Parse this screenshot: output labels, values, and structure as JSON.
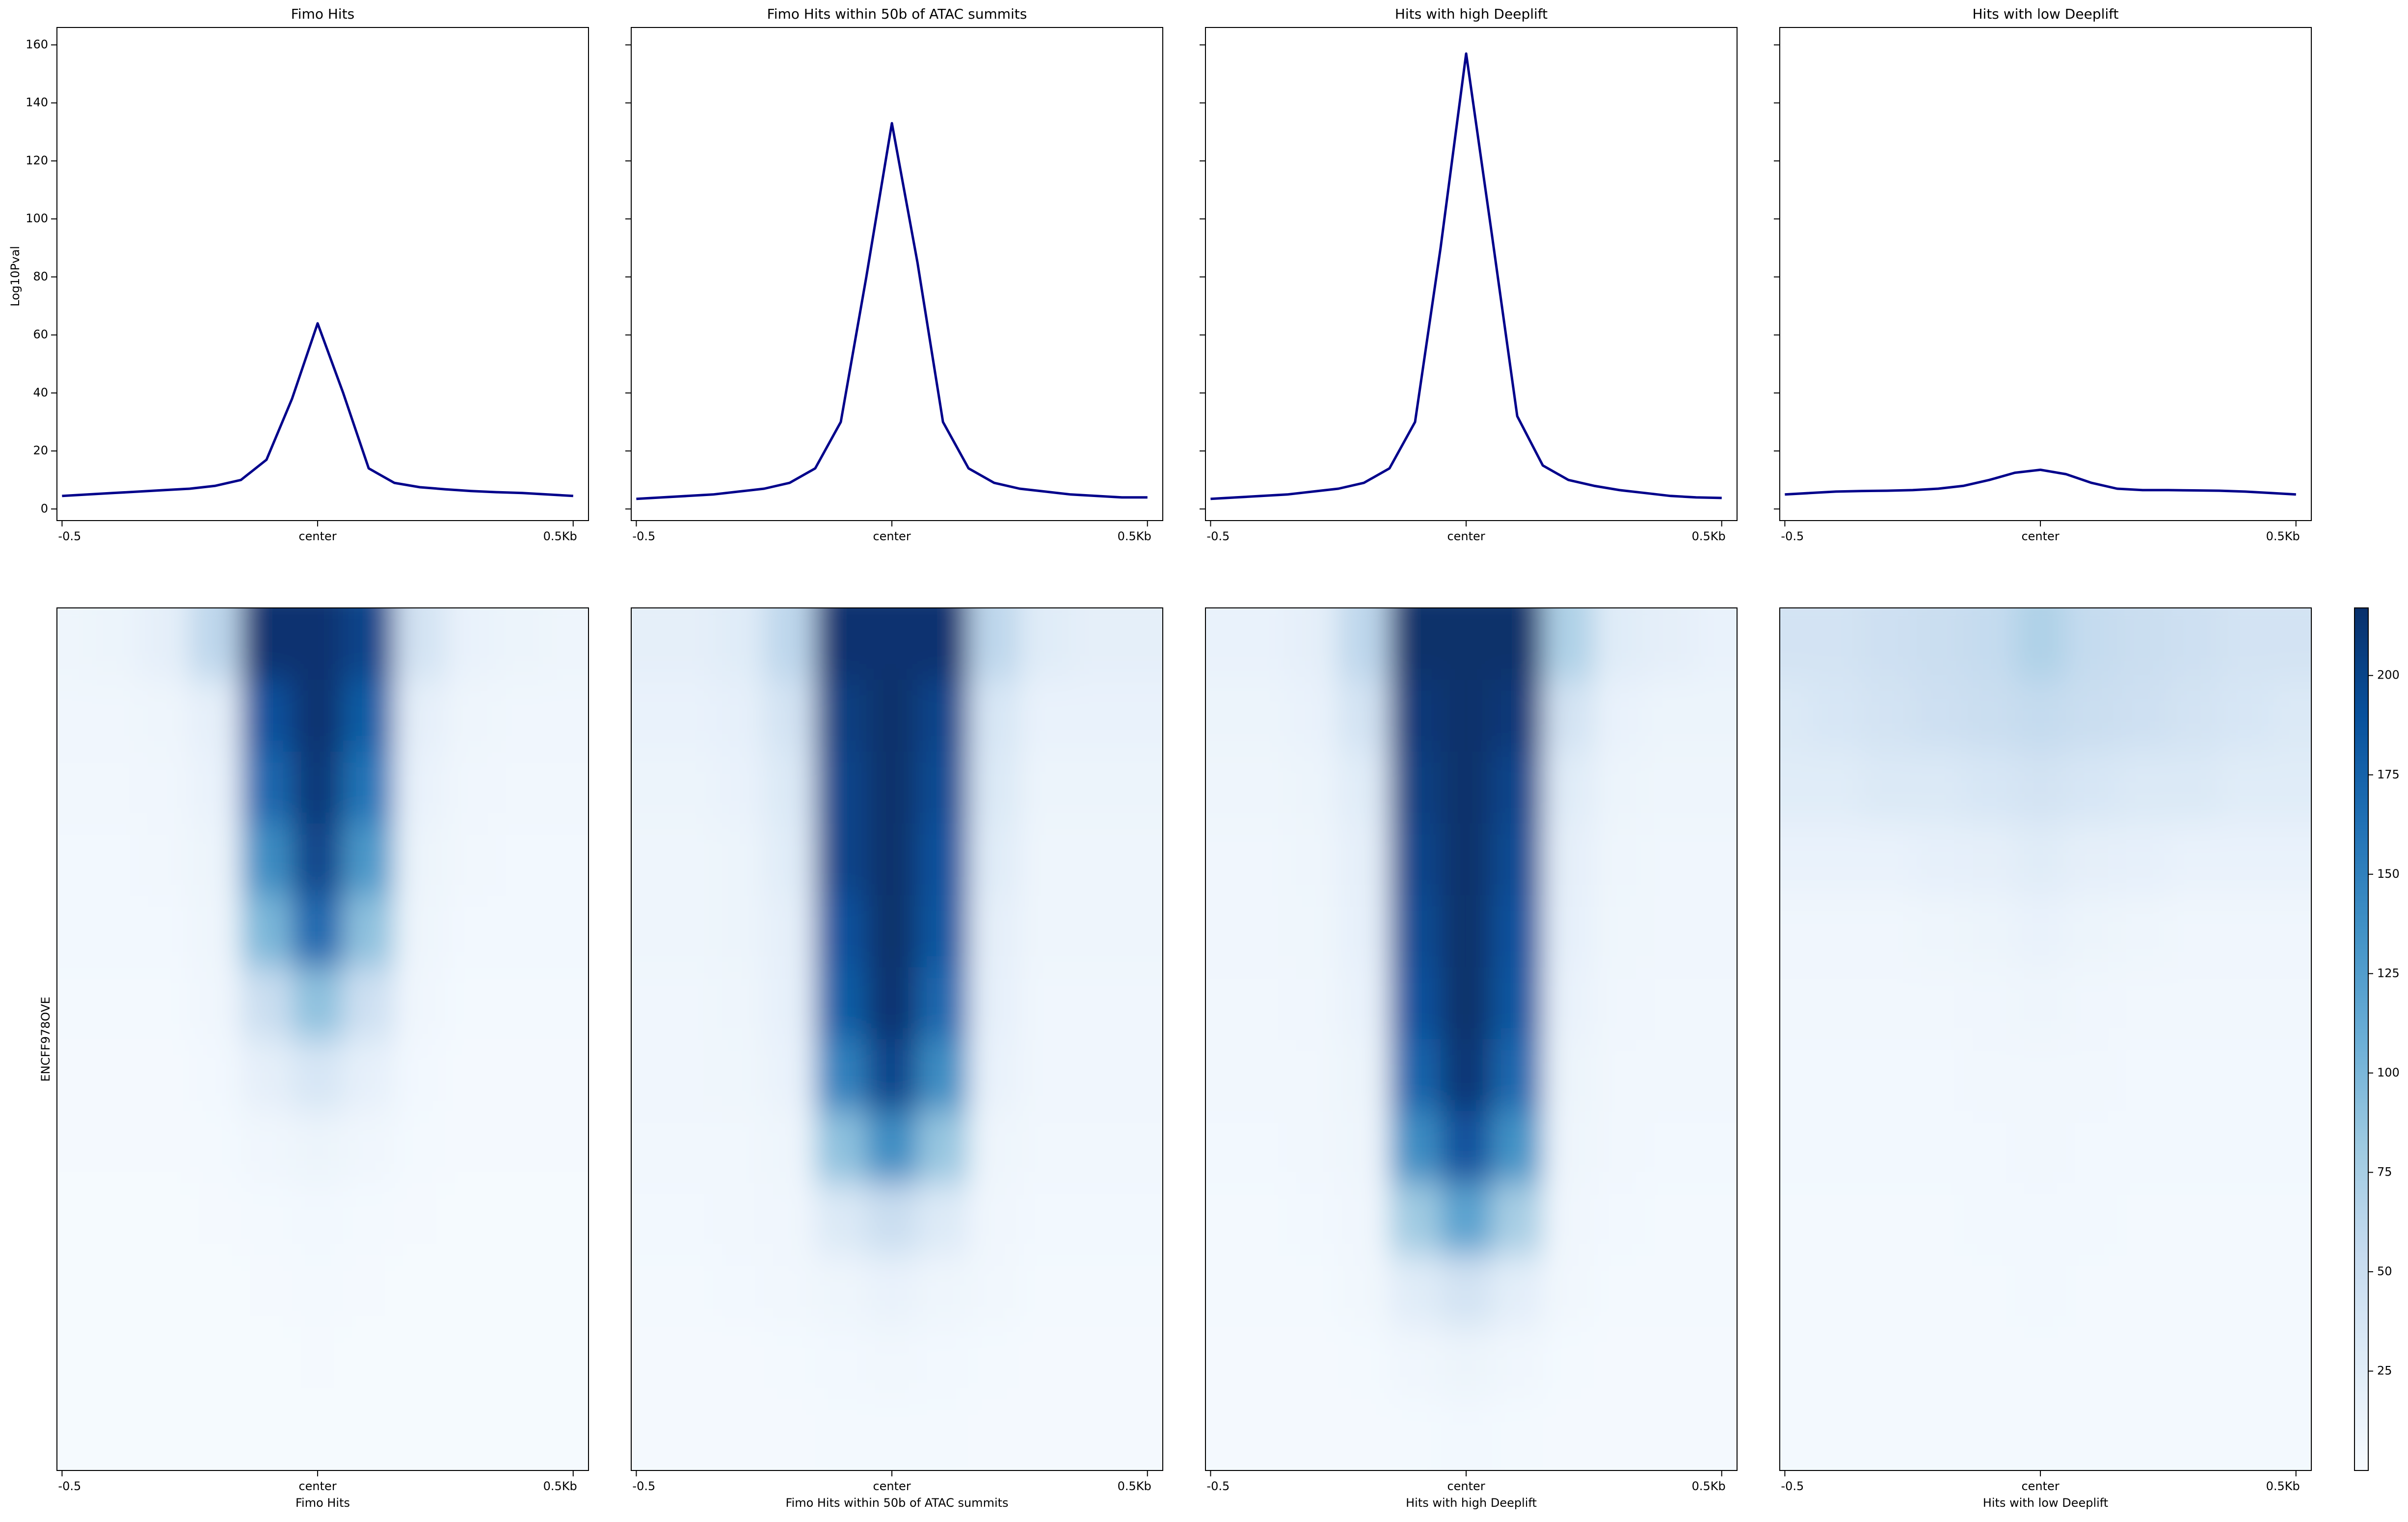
{
  "chart_data": [
    {
      "type": "line",
      "title": "Fimo Hits",
      "ylabel": "Log10Pval",
      "show_yticklabels": true,
      "color": "#00008b",
      "x": [
        -500,
        -450,
        -400,
        -350,
        -300,
        -250,
        -200,
        -150,
        -100,
        -50,
        0,
        50,
        100,
        150,
        200,
        250,
        300,
        350,
        400,
        450,
        500
      ],
      "values": [
        4.5,
        5,
        5.5,
        6,
        6.5,
        7,
        8,
        10,
        17,
        38,
        64,
        40,
        14,
        9,
        7.5,
        6.8,
        6.2,
        5.8,
        5.5,
        5,
        4.5
      ],
      "xlim": [
        -510,
        530
      ],
      "xticks": [
        {
          "value": -500,
          "label": "-0.5"
        },
        {
          "value": 0,
          "label": "center"
        },
        {
          "value": 500,
          "label": "0.5Kb"
        }
      ],
      "ylim": [
        -4,
        166
      ],
      "yticks": [
        0,
        20,
        40,
        60,
        80,
        100,
        120,
        140,
        160
      ]
    },
    {
      "type": "line",
      "title": "Fimo Hits within 50b of ATAC summits",
      "show_yticklabels": false,
      "color": "#00008b",
      "x": [
        -500,
        -450,
        -400,
        -350,
        -300,
        -250,
        -200,
        -150,
        -100,
        -50,
        0,
        50,
        100,
        150,
        200,
        250,
        300,
        350,
        400,
        450,
        500
      ],
      "values": [
        3.5,
        4,
        4.5,
        5,
        6,
        7,
        9,
        14,
        30,
        80,
        133,
        85,
        30,
        14,
        9,
        7,
        6,
        5,
        4.5,
        4,
        4
      ],
      "xlim": [
        -510,
        530
      ],
      "xticks": [
        {
          "value": -500,
          "label": "-0.5"
        },
        {
          "value": 0,
          "label": "center"
        },
        {
          "value": 500,
          "label": "0.5Kb"
        }
      ],
      "ylim": [
        -4,
        166
      ],
      "yticks": [
        0,
        20,
        40,
        60,
        80,
        100,
        120,
        140,
        160
      ]
    },
    {
      "type": "line",
      "title": "Hits with high Deeplift",
      "show_yticklabels": false,
      "color": "#00008b",
      "x": [
        -500,
        -450,
        -400,
        -350,
        -300,
        -250,
        -200,
        -150,
        -100,
        -50,
        0,
        50,
        100,
        150,
        200,
        250,
        300,
        350,
        400,
        450,
        500
      ],
      "values": [
        3.5,
        4,
        4.5,
        5,
        6,
        7,
        9,
        14,
        30,
        90,
        157,
        95,
        32,
        15,
        10,
        8,
        6.5,
        5.5,
        4.5,
        4,
        3.8
      ],
      "xlim": [
        -510,
        530
      ],
      "xticks": [
        {
          "value": -500,
          "label": "-0.5"
        },
        {
          "value": 0,
          "label": "center"
        },
        {
          "value": 500,
          "label": "0.5Kb"
        }
      ],
      "ylim": [
        -4,
        166
      ],
      "yticks": [
        0,
        20,
        40,
        60,
        80,
        100,
        120,
        140,
        160
      ]
    },
    {
      "type": "line",
      "title": "Hits with low Deeplift",
      "show_yticklabels": false,
      "color": "#00008b",
      "x": [
        -500,
        -450,
        -400,
        -350,
        -300,
        -250,
        -200,
        -150,
        -100,
        -50,
        0,
        50,
        100,
        150,
        200,
        250,
        300,
        350,
        400,
        450,
        500
      ],
      "values": [
        5,
        5.5,
        6,
        6.2,
        6.3,
        6.5,
        7,
        8,
        10,
        12.5,
        13.5,
        12,
        9,
        7,
        6.5,
        6.5,
        6.4,
        6.3,
        6,
        5.5,
        5
      ],
      "xlim": [
        -510,
        530
      ],
      "xticks": [
        {
          "value": -500,
          "label": "-0.5"
        },
        {
          "value": 0,
          "label": "center"
        },
        {
          "value": 500,
          "label": "0.5Kb"
        }
      ],
      "ylim": [
        -4,
        166
      ],
      "yticks": [
        0,
        20,
        40,
        60,
        80,
        100,
        120,
        140,
        160
      ]
    },
    {
      "type": "heatmap",
      "xlabel": "Fimo Hits",
      "ylabel": "ENCFF978OVE",
      "colormap": "Blues",
      "clim": [
        0,
        217
      ],
      "x": [
        -500,
        -400,
        -300,
        -200,
        -100,
        0,
        100,
        200,
        300,
        400,
        500
      ],
      "xlim": [
        -510,
        530
      ],
      "xticks": [
        {
          "value": -500,
          "label": "-0.5"
        },
        {
          "value": 0,
          "label": "center"
        },
        {
          "value": 500,
          "label": "0.5Kb"
        }
      ],
      "values": [
        [
          10,
          12,
          20,
          60,
          215,
          215,
          200,
          40,
          15,
          12,
          10
        ],
        [
          8,
          8,
          10,
          20,
          190,
          215,
          180,
          20,
          10,
          8,
          8
        ],
        [
          6,
          6,
          8,
          15,
          170,
          210,
          160,
          15,
          8,
          6,
          6
        ],
        [
          5,
          5,
          6,
          12,
          140,
          200,
          130,
          12,
          6,
          5,
          5
        ],
        [
          5,
          5,
          5,
          10,
          100,
          170,
          90,
          10,
          5,
          5,
          5
        ],
        [
          4,
          4,
          4,
          8,
          50,
          90,
          45,
          8,
          4,
          4,
          4
        ],
        [
          3,
          3,
          3,
          5,
          20,
          35,
          18,
          5,
          3,
          3,
          3
        ],
        [
          3,
          3,
          3,
          4,
          8,
          12,
          8,
          4,
          3,
          3,
          3
        ],
        [
          2,
          2,
          2,
          3,
          4,
          5,
          4,
          3,
          2,
          2,
          2
        ],
        [
          2,
          2,
          2,
          2,
          3,
          4,
          3,
          2,
          2,
          2,
          2
        ],
        [
          2,
          2,
          2,
          2,
          2,
          3,
          2,
          2,
          2,
          2,
          2
        ],
        [
          2,
          2,
          2,
          2,
          2,
          2,
          2,
          2,
          2,
          2,
          2
        ]
      ]
    },
    {
      "type": "heatmap",
      "xlabel": "Fimo Hits within 50b of ATAC summits",
      "colormap": "Blues",
      "clim": [
        0,
        217
      ],
      "x": [
        -500,
        -400,
        -300,
        -200,
        -100,
        0,
        100,
        200,
        300,
        400,
        500
      ],
      "xlim": [
        -510,
        530
      ],
      "xticks": [
        {
          "value": -500,
          "label": "-0.5"
        },
        {
          "value": 0,
          "label": "center"
        },
        {
          "value": 500,
          "label": "0.5Kb"
        }
      ],
      "values": [
        [
          20,
          20,
          25,
          60,
          215,
          215,
          215,
          60,
          25,
          20,
          20
        ],
        [
          15,
          15,
          18,
          40,
          205,
          217,
          200,
          35,
          15,
          15,
          15
        ],
        [
          12,
          12,
          15,
          30,
          200,
          217,
          195,
          30,
          12,
          12,
          12
        ],
        [
          10,
          10,
          12,
          25,
          200,
          217,
          190,
          25,
          10,
          10,
          10
        ],
        [
          10,
          10,
          12,
          20,
          190,
          217,
          185,
          20,
          10,
          10,
          10
        ],
        [
          8,
          8,
          10,
          18,
          180,
          215,
          170,
          18,
          8,
          8,
          8
        ],
        [
          8,
          8,
          9,
          15,
          150,
          200,
          140,
          15,
          8,
          8,
          8
        ],
        [
          6,
          6,
          7,
          10,
          90,
          140,
          85,
          10,
          6,
          6,
          6
        ],
        [
          5,
          5,
          6,
          8,
          30,
          50,
          28,
          8,
          5,
          5,
          5
        ],
        [
          4,
          4,
          5,
          6,
          10,
          15,
          10,
          6,
          4,
          4,
          4
        ],
        [
          3,
          3,
          3,
          4,
          5,
          6,
          5,
          4,
          3,
          3,
          3
        ],
        [
          3,
          3,
          3,
          3,
          4,
          4,
          4,
          3,
          3,
          3,
          3
        ]
      ]
    },
    {
      "type": "heatmap",
      "xlabel": "Hits with high Deeplift",
      "colormap": "Blues",
      "clim": [
        0,
        217
      ],
      "x": [
        -500,
        -400,
        -300,
        -200,
        -100,
        0,
        100,
        200,
        300,
        400,
        500
      ],
      "xlim": [
        -510,
        530
      ],
      "xticks": [
        {
          "value": -500,
          "label": "-0.5"
        },
        {
          "value": 0,
          "label": "center"
        },
        {
          "value": 500,
          "label": "0.5Kb"
        }
      ],
      "values": [
        [
          15,
          15,
          20,
          60,
          217,
          217,
          217,
          70,
          25,
          20,
          15
        ],
        [
          12,
          12,
          15,
          40,
          210,
          217,
          210,
          40,
          15,
          12,
          12
        ],
        [
          10,
          10,
          12,
          25,
          205,
          217,
          200,
          25,
          12,
          10,
          10
        ],
        [
          8,
          8,
          10,
          20,
          200,
          217,
          195,
          20,
          10,
          8,
          8
        ],
        [
          8,
          8,
          9,
          18,
          195,
          217,
          190,
          18,
          9,
          8,
          8
        ],
        [
          6,
          6,
          8,
          15,
          190,
          217,
          185,
          15,
          8,
          6,
          6
        ],
        [
          6,
          6,
          7,
          12,
          175,
          212,
          170,
          12,
          7,
          6,
          6
        ],
        [
          5,
          5,
          6,
          10,
          140,
          190,
          135,
          10,
          6,
          5,
          5
        ],
        [
          4,
          4,
          5,
          8,
          80,
          120,
          75,
          8,
          5,
          4,
          4
        ],
        [
          4,
          4,
          4,
          6,
          25,
          40,
          22,
          6,
          4,
          4,
          4
        ],
        [
          3,
          3,
          3,
          4,
          8,
          12,
          8,
          4,
          3,
          3,
          3
        ],
        [
          3,
          3,
          3,
          3,
          4,
          5,
          4,
          3,
          3,
          3,
          3
        ]
      ]
    },
    {
      "type": "heatmap",
      "xlabel": "Hits with low Deeplift",
      "colormap": "Blues",
      "clim": [
        0,
        217
      ],
      "colorbar_ticks": [
        25,
        50,
        75,
        100,
        125,
        150,
        175,
        200
      ],
      "x": [
        -500,
        -400,
        -300,
        -200,
        -100,
        0,
        100,
        200,
        300,
        400,
        500
      ],
      "xlim": [
        -510,
        530
      ],
      "xticks": [
        {
          "value": -500,
          "label": "-0.5"
        },
        {
          "value": 0,
          "label": "center"
        },
        {
          "value": 500,
          "label": "0.5Kb"
        }
      ],
      "values": [
        [
          40,
          40,
          45,
          50,
          55,
          70,
          55,
          50,
          45,
          40,
          40
        ],
        [
          30,
          35,
          40,
          45,
          50,
          55,
          50,
          45,
          40,
          35,
          30
        ],
        [
          25,
          25,
          30,
          30,
          35,
          40,
          35,
          30,
          30,
          25,
          25
        ],
        [
          15,
          15,
          15,
          18,
          20,
          25,
          20,
          18,
          15,
          15,
          15
        ],
        [
          8,
          8,
          8,
          10,
          12,
          15,
          12,
          10,
          8,
          8,
          8
        ],
        [
          6,
          6,
          6,
          7,
          8,
          10,
          8,
          7,
          6,
          6,
          6
        ],
        [
          5,
          5,
          5,
          5,
          6,
          7,
          6,
          5,
          5,
          5,
          5
        ],
        [
          5,
          5,
          5,
          5,
          5,
          6,
          5,
          5,
          5,
          5,
          5
        ],
        [
          4,
          4,
          4,
          4,
          5,
          5,
          5,
          4,
          4,
          4,
          4
        ],
        [
          4,
          4,
          4,
          4,
          4,
          5,
          4,
          4,
          4,
          4,
          4
        ],
        [
          4,
          4,
          4,
          4,
          4,
          4,
          4,
          4,
          4,
          4,
          4
        ],
        [
          4,
          4,
          4,
          4,
          4,
          4,
          4,
          4,
          4,
          4,
          4
        ]
      ]
    }
  ]
}
